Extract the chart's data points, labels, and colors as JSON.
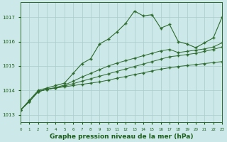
{
  "hours": [
    0,
    1,
    2,
    3,
    4,
    5,
    6,
    7,
    8,
    9,
    10,
    11,
    12,
    13,
    14,
    15,
    16,
    17,
    18,
    19,
    20,
    21,
    22,
    23
  ],
  "line_main": [
    1013.2,
    1013.6,
    1014.0,
    1014.1,
    1014.2,
    1014.3,
    1014.7,
    1015.1,
    1015.3,
    1015.9,
    1016.1,
    1016.4,
    1016.75,
    1017.25,
    1017.05,
    1017.1,
    1016.55,
    1016.7,
    1016.0,
    1015.9,
    1015.75,
    1015.95,
    1016.15,
    1017.0
  ],
  "line_flat1": [
    1013.2,
    1013.55,
    1013.95,
    1014.05,
    1014.1,
    1014.15,
    1014.2,
    1014.25,
    1014.3,
    1014.35,
    1014.42,
    1014.5,
    1014.57,
    1014.65,
    1014.72,
    1014.8,
    1014.87,
    1014.93,
    1014.98,
    1015.02,
    1015.06,
    1015.1,
    1015.14,
    1015.18
  ],
  "line_flat2": [
    1013.2,
    1013.55,
    1013.95,
    1014.05,
    1014.1,
    1014.18,
    1014.28,
    1014.38,
    1014.48,
    1014.58,
    1014.68,
    1014.78,
    1014.88,
    1014.98,
    1015.08,
    1015.18,
    1015.28,
    1015.38,
    1015.42,
    1015.47,
    1015.52,
    1015.6,
    1015.68,
    1015.78
  ],
  "line_flat3": [
    1013.2,
    1013.55,
    1013.95,
    1014.05,
    1014.12,
    1014.22,
    1014.38,
    1014.55,
    1014.7,
    1014.85,
    1015.0,
    1015.12,
    1015.22,
    1015.32,
    1015.42,
    1015.52,
    1015.62,
    1015.68,
    1015.55,
    1015.6,
    1015.65,
    1015.7,
    1015.78,
    1015.95
  ],
  "line_color": "#2d6a2d",
  "bg_color": "#cce8e8",
  "grid_color": "#aacccc",
  "title": "Graphe pression niveau de la mer (hPa)",
  "ylabel_ticks": [
    1013,
    1014,
    1015,
    1016,
    1017
  ],
  "xlim": [
    0,
    23
  ],
  "ylim": [
    1012.7,
    1017.6
  ],
  "title_color": "#1a5c1a",
  "title_fontsize": 6.5
}
